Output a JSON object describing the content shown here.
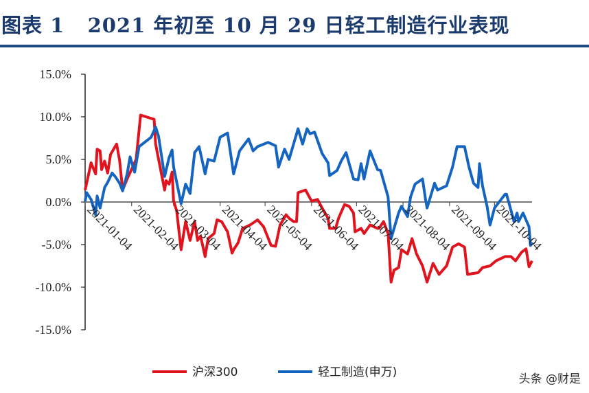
{
  "header": {
    "title": "图表 1   2021 年初至 10 月 29 日轻工制造行业表现"
  },
  "watermark": "头条 @财是",
  "chart_data": {
    "type": "line",
    "title": "2021 年初至 10 月 29 日轻工制造行业表现",
    "xlabel": "",
    "ylabel": "",
    "xlim": [
      "2021-01-04",
      "2021-10-29"
    ],
    "ylim": [
      -15,
      15
    ],
    "y_ticks": [
      "15.0%",
      "10.0%",
      "5.0%",
      "0.0%",
      "-5.0%",
      "-10.0%",
      "-15.0%"
    ],
    "y_tick_values": [
      15,
      10,
      5,
      0,
      -5,
      -10,
      -15
    ],
    "x_ticks": [
      "2021-01-04",
      "2021-02-04",
      "2021-03-04",
      "2021-04-04",
      "2021-05-04",
      "2021-06-04",
      "2021-07-04",
      "2021-08-04",
      "2021-09-04",
      "2021-10-04"
    ],
    "grid": false,
    "legend_position": "bottom",
    "series": [
      {
        "name": "沪深300",
        "color": "#e0141e",
        "points": [
          [
            "2021-01-04",
            1.4
          ],
          [
            "2021-01-08",
            4.6
          ],
          [
            "2021-01-11",
            3.3
          ],
          [
            "2021-01-12",
            6.2
          ],
          [
            "2021-01-14",
            6.0
          ],
          [
            "2021-01-15",
            3.8
          ],
          [
            "2021-01-17",
            4.8
          ],
          [
            "2021-01-19",
            3.4
          ],
          [
            "2021-01-21",
            5.6
          ],
          [
            "2021-01-25",
            6.8
          ],
          [
            "2021-01-27",
            4.9
          ],
          [
            "2021-01-29",
            1.4
          ],
          [
            "2021-02-01",
            2.7
          ],
          [
            "2021-02-07",
            5.0
          ],
          [
            "2021-02-10",
            10.2
          ],
          [
            "2021-02-19",
            9.7
          ],
          [
            "2021-02-20",
            6.8
          ],
          [
            "2021-02-26",
            1.4
          ],
          [
            "2021-02-27",
            2.5
          ],
          [
            "2021-03-01",
            2.1
          ],
          [
            "2021-03-03",
            3.5
          ],
          [
            "2021-03-04",
            0.1
          ],
          [
            "2021-03-06",
            -1.0
          ],
          [
            "2021-03-09",
            -5.6
          ],
          [
            "2021-03-12",
            -2.3
          ],
          [
            "2021-03-15",
            -4.5
          ],
          [
            "2021-03-18",
            -2.3
          ],
          [
            "2021-03-20",
            -4.5
          ],
          [
            "2021-03-22",
            -4.0
          ],
          [
            "2021-03-25",
            -6.4
          ],
          [
            "2021-03-27",
            -4.3
          ],
          [
            "2021-03-31",
            -3.7
          ],
          [
            "2021-04-02",
            -2.1
          ],
          [
            "2021-04-05",
            -2.3
          ],
          [
            "2021-04-09",
            -3.5
          ],
          [
            "2021-04-12",
            -6.0
          ],
          [
            "2021-04-13",
            -5.6
          ],
          [
            "2021-04-16",
            -4.8
          ],
          [
            "2021-04-19",
            -3.1
          ],
          [
            "2021-04-24",
            -2.7
          ],
          [
            "2021-04-29",
            -2.1
          ],
          [
            "2021-05-03",
            -2.9
          ],
          [
            "2021-05-08",
            -5.1
          ],
          [
            "2021-05-11",
            -5.2
          ],
          [
            "2021-05-14",
            -2.7
          ],
          [
            "2021-05-18",
            -1.5
          ],
          [
            "2021-05-20",
            -1.9
          ],
          [
            "2021-05-23",
            -2.3
          ],
          [
            "2021-05-25",
            -2.3
          ],
          [
            "2021-05-26",
            1.1
          ],
          [
            "2021-05-31",
            1.4
          ],
          [
            "2021-06-04",
            0.1
          ],
          [
            "2021-06-08",
            0.3
          ],
          [
            "2021-06-11",
            -0.7
          ],
          [
            "2021-06-15",
            -1.9
          ],
          [
            "2021-06-16",
            -3.1
          ],
          [
            "2021-06-20",
            -3.1
          ],
          [
            "2021-06-22",
            -1.9
          ],
          [
            "2021-06-26",
            -0.3
          ],
          [
            "2021-06-29",
            -0.5
          ],
          [
            "2021-07-02",
            -1.3
          ],
          [
            "2021-07-03",
            -3.5
          ],
          [
            "2021-07-07",
            -3.1
          ],
          [
            "2021-07-09",
            -3.7
          ],
          [
            "2021-07-13",
            -2.7
          ],
          [
            "2021-07-18",
            -3.1
          ],
          [
            "2021-07-19",
            -3.1
          ],
          [
            "2021-07-22",
            -2.3
          ],
          [
            "2021-07-25",
            -3.7
          ],
          [
            "2021-07-27",
            -9.4
          ],
          [
            "2021-07-29",
            -8.0
          ],
          [
            "2021-08-01",
            -7.7
          ],
          [
            "2021-08-03",
            -5.6
          ],
          [
            "2021-08-07",
            -6.1
          ],
          [
            "2021-08-10",
            -4.3
          ],
          [
            "2021-08-13",
            -6.1
          ],
          [
            "2021-08-17",
            -7.5
          ],
          [
            "2021-08-20",
            -9.4
          ],
          [
            "2021-08-24",
            -7.2
          ],
          [
            "2021-08-28",
            -8.5
          ],
          [
            "2021-09-02",
            -7.5
          ],
          [
            "2021-09-06",
            -5.3
          ],
          [
            "2021-09-10",
            -4.9
          ],
          [
            "2021-09-14",
            -5.3
          ],
          [
            "2021-09-16",
            -8.5
          ],
          [
            "2021-09-23",
            -8.3
          ],
          [
            "2021-09-26",
            -7.7
          ],
          [
            "2021-10-01",
            -7.5
          ],
          [
            "2021-10-05",
            -6.9
          ],
          [
            "2021-10-11",
            -6.4
          ],
          [
            "2021-10-15",
            -6.4
          ],
          [
            "2021-10-18",
            -6.9
          ],
          [
            "2021-10-22",
            -5.9
          ],
          [
            "2021-10-25",
            -5.5
          ],
          [
            "2021-10-27",
            -7.6
          ],
          [
            "2021-10-29",
            -6.9
          ]
        ]
      },
      {
        "name": "轻工制造(申万)",
        "color": "#1565c0",
        "points": [
          [
            "2021-01-04",
            0.1
          ],
          [
            "2021-01-05",
            1.1
          ],
          [
            "2021-01-08",
            0.3
          ],
          [
            "2021-01-11",
            -1.5
          ],
          [
            "2021-01-12",
            0.7
          ],
          [
            "2021-01-14",
            -0.7
          ],
          [
            "2021-01-17",
            1.7
          ],
          [
            "2021-01-19",
            2.3
          ],
          [
            "2021-01-22",
            3.4
          ],
          [
            "2021-01-24",
            3.0
          ],
          [
            "2021-01-27",
            2.2
          ],
          [
            "2021-01-29",
            1.3
          ],
          [
            "2021-02-01",
            3.3
          ],
          [
            "2021-02-03",
            5.3
          ],
          [
            "2021-02-06",
            3.5
          ],
          [
            "2021-02-09",
            6.5
          ],
          [
            "2021-02-17",
            7.6
          ],
          [
            "2021-02-20",
            8.8
          ],
          [
            "2021-02-22",
            7.7
          ],
          [
            "2021-02-26",
            3.0
          ],
          [
            "2021-03-01",
            5.2
          ],
          [
            "2021-03-03",
            6.1
          ],
          [
            "2021-03-04",
            4.1
          ],
          [
            "2021-03-09",
            -0.2
          ],
          [
            "2021-03-12",
            2.1
          ],
          [
            "2021-03-15",
            1.0
          ],
          [
            "2021-03-18",
            5.8
          ],
          [
            "2021-03-21",
            6.5
          ],
          [
            "2021-03-25",
            3.3
          ],
          [
            "2021-03-27",
            5.0
          ],
          [
            "2021-03-31",
            4.8
          ],
          [
            "2021-04-04",
            7.6
          ],
          [
            "2021-04-09",
            8.1
          ],
          [
            "2021-04-13",
            3.3
          ],
          [
            "2021-04-17",
            6.0
          ],
          [
            "2021-04-23",
            7.4
          ],
          [
            "2021-04-26",
            6.0
          ],
          [
            "2021-04-29",
            6.5
          ],
          [
            "2021-05-06",
            7.0
          ],
          [
            "2021-05-11",
            6.6
          ],
          [
            "2021-05-13",
            4.1
          ],
          [
            "2021-05-17",
            6.2
          ],
          [
            "2021-05-20",
            5.0
          ],
          [
            "2021-05-26",
            8.6
          ],
          [
            "2021-05-29",
            6.8
          ],
          [
            "2021-06-01",
            8.6
          ],
          [
            "2021-06-03",
            8.0
          ],
          [
            "2021-06-06",
            8.2
          ],
          [
            "2021-06-11",
            5.7
          ],
          [
            "2021-06-15",
            4.6
          ],
          [
            "2021-06-16",
            3.1
          ],
          [
            "2021-06-21",
            3.7
          ],
          [
            "2021-06-24",
            4.9
          ],
          [
            "2021-06-27",
            5.8
          ],
          [
            "2021-07-02",
            2.7
          ],
          [
            "2021-07-05",
            2.6
          ],
          [
            "2021-07-07",
            4.5
          ],
          [
            "2021-07-09",
            2.7
          ],
          [
            "2021-07-13",
            6.0
          ],
          [
            "2021-07-18",
            3.8
          ],
          [
            "2021-07-20",
            3.7
          ],
          [
            "2021-07-25",
            0.6
          ],
          [
            "2021-07-27",
            -4.3
          ],
          [
            "2021-08-01",
            -1.3
          ],
          [
            "2021-08-03",
            -0.5
          ],
          [
            "2021-08-07",
            -1.7
          ],
          [
            "2021-08-09",
            0.6
          ],
          [
            "2021-08-12",
            2.1
          ],
          [
            "2021-08-17",
            2.7
          ],
          [
            "2021-08-19",
            0.3
          ],
          [
            "2021-08-20",
            -0.7
          ],
          [
            "2021-08-25",
            2.2
          ],
          [
            "2021-08-27",
            1.4
          ],
          [
            "2021-09-02",
            1.9
          ],
          [
            "2021-09-06",
            4.1
          ],
          [
            "2021-09-09",
            6.5
          ],
          [
            "2021-09-14",
            6.5
          ],
          [
            "2021-09-17",
            4.1
          ],
          [
            "2021-09-20",
            2.2
          ],
          [
            "2021-09-23",
            1.7
          ],
          [
            "2021-09-24",
            4.5
          ],
          [
            "2021-09-26",
            1.9
          ],
          [
            "2021-09-29",
            -0.5
          ],
          [
            "2021-10-01",
            -2.7
          ],
          [
            "2021-10-04",
            -0.7
          ],
          [
            "2021-10-11",
            0.9
          ],
          [
            "2021-10-12",
            0.9
          ],
          [
            "2021-10-15",
            -1.0
          ],
          [
            "2021-10-17",
            -2.3
          ],
          [
            "2021-10-19",
            -1.3
          ],
          [
            "2021-10-20",
            -2.3
          ],
          [
            "2021-10-23",
            -1.3
          ],
          [
            "2021-10-27",
            -2.9
          ],
          [
            "2021-10-28",
            -5.1
          ],
          [
            "2021-10-29",
            -4.7
          ]
        ]
      }
    ]
  }
}
